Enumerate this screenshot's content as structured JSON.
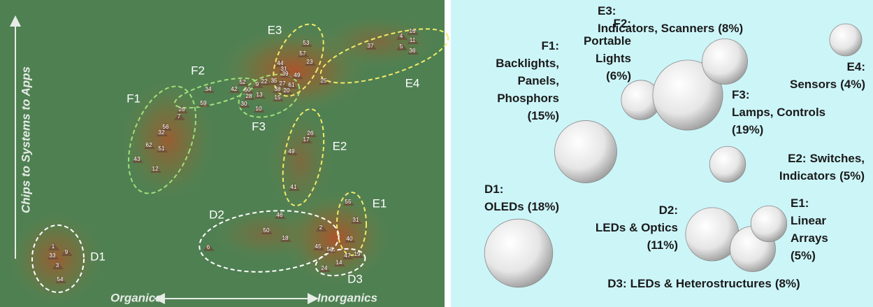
{
  "map": {
    "y_axis_label": "Chips to Systems to Apps",
    "x_axis_left": "Organics",
    "x_axis_right": "Inorganics",
    "points": [
      "16",
      "4",
      "11",
      "5",
      "36",
      "37",
      "53",
      "57",
      "23",
      "44",
      "31",
      "39",
      "49",
      "52",
      "22",
      "35",
      "27",
      "61",
      "9",
      "42",
      "60",
      "38",
      "20",
      "34",
      "28",
      "13",
      "15",
      "25",
      "59",
      "30",
      "10",
      "26",
      "7",
      "56",
      "32",
      "62",
      "51",
      "43",
      "12",
      "26",
      "17",
      "49",
      "41",
      "55",
      "31",
      "40",
      "46",
      "50",
      "2",
      "18",
      "45",
      "58",
      "47",
      "19",
      "14",
      "24",
      "6",
      "1",
      "33",
      "9",
      "3",
      "54"
    ],
    "clusters": [
      "F1",
      "F2",
      "F3",
      "E3",
      "E4",
      "E2",
      "E1",
      "D2",
      "D3",
      "D1"
    ]
  },
  "bubbles": [
    {
      "id": "F1:",
      "lines": [
        "Backlights,",
        "Panels,",
        "Phosphors"
      ],
      "share": 15,
      "share_label": "(15%)"
    },
    {
      "id": "F2:",
      "lines": [
        "Portable",
        "Lights"
      ],
      "share": 6,
      "share_label": "(6%)"
    },
    {
      "id": "E3:",
      "lines": [
        "Indicators, Scanners"
      ],
      "share": 8,
      "share_label": "(8%)"
    },
    {
      "id": "E4:",
      "lines": [
        "Sensors"
      ],
      "share": 4,
      "share_label": "(4%)"
    },
    {
      "id": "F3:",
      "lines": [
        "Lamps, Controls"
      ],
      "share": 19,
      "share_label": "(19%)"
    },
    {
      "id": "E2:",
      "lines": [
        "Switches,",
        "Indicators"
      ],
      "share": 5,
      "share_label": "(5%)"
    },
    {
      "id": "D1:",
      "lines": [
        "OLEDs"
      ],
      "share": 18,
      "share_label": "(18%)"
    },
    {
      "id": "D2:",
      "lines": [
        "LEDs & Optics"
      ],
      "share": 11,
      "share_label": "(11%)"
    },
    {
      "id": "E1:",
      "lines": [
        "Linear",
        "Arrays"
      ],
      "share": 5,
      "share_label": "(5%)"
    },
    {
      "id": "D3:",
      "lines": [
        "LEDs & Heterostructures"
      ],
      "share": 8,
      "share_label": "(8%)"
    }
  ]
}
